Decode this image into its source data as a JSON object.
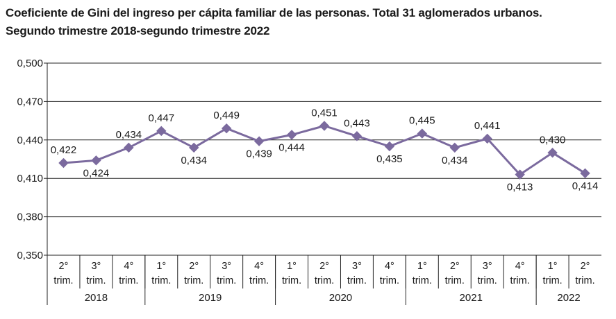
{
  "chart_data": {
    "type": "line",
    "title": "Coeficiente de Gini del ingreso per cápita familiar de las personas. Total 31 aglomerados urbanos.",
    "subtitle": "Segundo trimestre 2018-segundo trimestre 2022",
    "ylim": [
      0.35,
      0.5
    ],
    "yticks": [
      {
        "value": 0.5,
        "label": "0,500"
      },
      {
        "value": 0.47,
        "label": "0,470"
      },
      {
        "value": 0.44,
        "label": "0,440"
      },
      {
        "value": 0.41,
        "label": "0,410"
      },
      {
        "value": 0.38,
        "label": "0,380"
      },
      {
        "value": 0.35,
        "label": "0,350"
      }
    ],
    "grid": true,
    "categories": [
      {
        "line1": "2°",
        "line2": "trim."
      },
      {
        "line1": "3°",
        "line2": "trim."
      },
      {
        "line1": "4°",
        "line2": "trim."
      },
      {
        "line1": "1°",
        "line2": "trim."
      },
      {
        "line1": "2°",
        "line2": "trim."
      },
      {
        "line1": "3°",
        "line2": "trim."
      },
      {
        "line1": "4°",
        "line2": "trim."
      },
      {
        "line1": "1°",
        "line2": "trim."
      },
      {
        "line1": "2°",
        "line2": "trim."
      },
      {
        "line1": "3°",
        "line2": "trim."
      },
      {
        "line1": "4°",
        "line2": "trim."
      },
      {
        "line1": "1°",
        "line2": "trim."
      },
      {
        "line1": "2°",
        "line2": "trim."
      },
      {
        "line1": "3°",
        "line2": "trim."
      },
      {
        "line1": "4°",
        "line2": "trim."
      },
      {
        "line1": "1°",
        "line2": "trim."
      },
      {
        "line1": "2°",
        "line2": "trim."
      }
    ],
    "years": [
      {
        "label": "2018",
        "count": 3
      },
      {
        "label": "2019",
        "count": 4
      },
      {
        "label": "2020",
        "count": 4
      },
      {
        "label": "2021",
        "count": 4
      },
      {
        "label": "2022",
        "count": 2
      }
    ],
    "series": [
      {
        "color": "#7b6a9e",
        "values": [
          0.422,
          0.424,
          0.434,
          0.447,
          0.434,
          0.449,
          0.439,
          0.444,
          0.451,
          0.443,
          0.435,
          0.445,
          0.434,
          0.441,
          0.413,
          0.43,
          0.414
        ],
        "labels": [
          "0,422",
          "0,424",
          "0,434",
          "0,447",
          "0,434",
          "0,449",
          "0,439",
          "0,444",
          "0,451",
          "0,443",
          "0,435",
          "0,445",
          "0,434",
          "0,441",
          "0,413",
          "0,430",
          "0,414"
        ],
        "label_positions": [
          "above",
          "below",
          "above",
          "above",
          "below",
          "above",
          "below",
          "below",
          "above",
          "above",
          "below",
          "above",
          "below",
          "above",
          "below",
          "above",
          "below"
        ]
      }
    ]
  }
}
